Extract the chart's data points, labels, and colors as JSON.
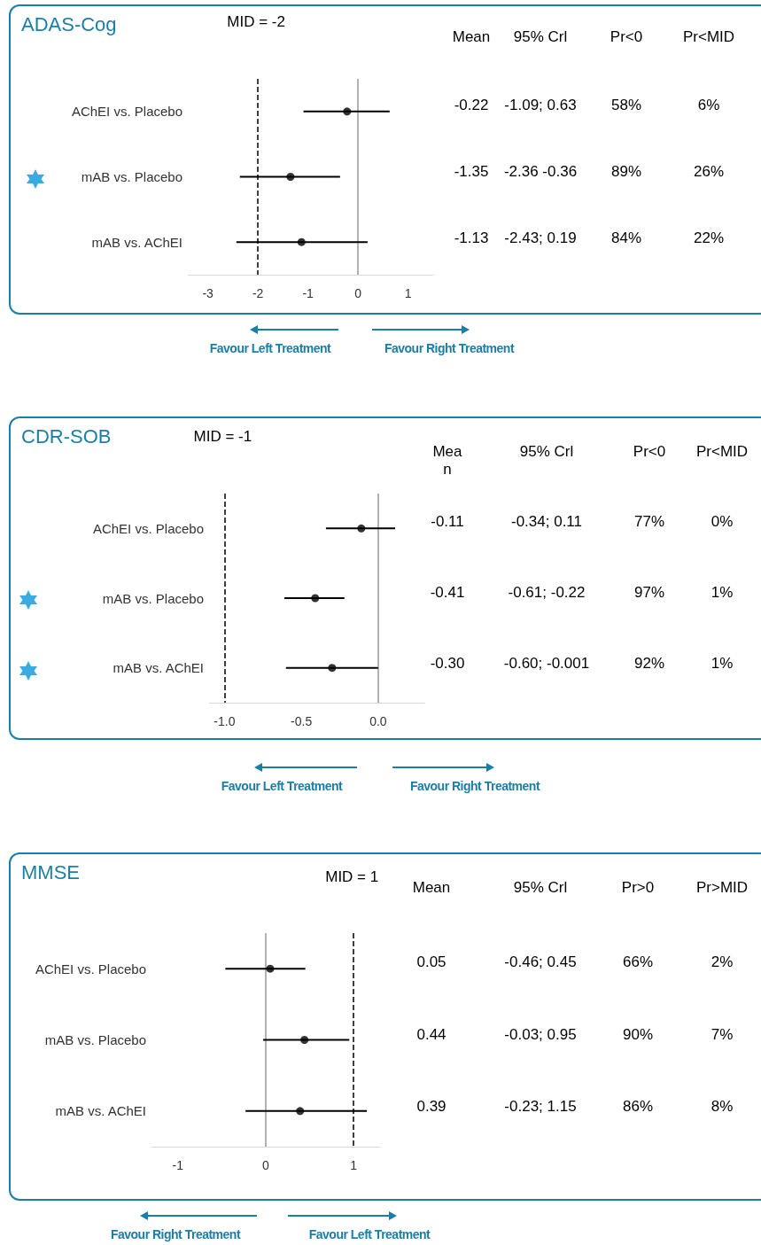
{
  "chart_data": [
    {
      "type": "scatter",
      "orientation": "horizontal",
      "title": "ADAS-Cog",
      "categories": [
        "AChEI vs. Placebo",
        "mAB vs. Placebo",
        "mAB vs. AChEI"
      ],
      "values": [
        -0.22,
        -1.35,
        -1.13
      ],
      "errors": [
        [
          -1.09,
          0.63
        ],
        [
          -2.36,
          -0.36
        ],
        [
          -2.43,
          0.19
        ]
      ],
      "value_labels": [
        "-0.22",
        "-1.35",
        "-1.13"
      ],
      "color": "#000000",
      "xlim": [
        -3.4,
        1.5
      ],
      "xticks": [
        -3,
        -2,
        -1,
        0,
        1
      ],
      "grid": false,
      "ref_lines": [
        {
          "axis": "x",
          "value": -2,
          "label": "MID = -2",
          "line_style": "dashed",
          "color": "#000000"
        },
        {
          "axis": "x",
          "value": 0,
          "label": null,
          "color": "#999999"
        }
      ],
      "annotations": [
        "Mean",
        "95% Crl",
        "Pr<0",
        "Pr<MID",
        "-1.09; 0.63",
        "58%",
        "6%",
        "-2.36 -0.36",
        "89%",
        "26%",
        "-2.43; 0.19",
        "84%",
        "22%",
        "Favour  Left Treatment",
        "Favour Right Treatment"
      ]
    },
    {
      "type": "scatter",
      "orientation": "horizontal",
      "title": "CDR-SOB",
      "categories": [
        "AChEI vs. Placebo",
        "mAB vs. Placebo",
        "mAB vs. AChEI"
      ],
      "values": [
        -0.11,
        -0.41,
        -0.3
      ],
      "errors": [
        [
          -0.34,
          0.11
        ],
        [
          -0.61,
          -0.22
        ],
        [
          -0.6,
          -0.001
        ]
      ],
      "value_labels": [
        "-0.11",
        "-0.41",
        "-0.30"
      ],
      "color": "#000000",
      "xlim": [
        -1.1,
        0.3
      ],
      "xticks": [
        {
          "value": -1,
          "label": "-1.0"
        },
        {
          "value": -0.5,
          "label": "-0.5"
        },
        {
          "value": 0,
          "label": "0.0"
        }
      ],
      "grid": false,
      "ref_lines": [
        {
          "axis": "x",
          "value": -1,
          "label": "MID = -1",
          "line_style": "dashed",
          "color": "#000000"
        },
        {
          "axis": "x",
          "value": 0,
          "label": null,
          "color": "#999999"
        }
      ],
      "annotations": [
        "Mean",
        "95% Crl",
        "Pr<0",
        "Pr<MID",
        "-0.34; 0.11",
        "77%",
        "0%",
        "-0.61; -0.22",
        "97%",
        "1%",
        "-0.60; -0.001",
        "92%",
        "1%",
        "Favour Left Treatment",
        "Favour Right Treatment"
      ]
    },
    {
      "type": "scatter",
      "orientation": "horizontal",
      "title": "MMSE",
      "categories": [
        "AChEI vs. Placebo",
        "mAB vs. Placebo",
        "mAB vs. AChEI"
      ],
      "values": [
        0.05,
        0.44,
        0.39
      ],
      "errors": [
        [
          -0.46,
          0.45
        ],
        [
          -0.03,
          0.95
        ],
        [
          -0.23,
          1.15
        ]
      ],
      "value_labels": [
        "0.05",
        "0.44",
        "0.39"
      ],
      "color": "#000000",
      "xlim": [
        -1.3,
        1.3
      ],
      "xticks": [
        -1,
        0,
        1
      ],
      "grid": false,
      "ref_lines": [
        {
          "axis": "x",
          "value": 1,
          "label": "MID = 1",
          "line_style": "dashed",
          "color": "#000000"
        },
        {
          "axis": "x",
          "value": 0,
          "label": null,
          "color": "#999999"
        }
      ],
      "annotations": [
        "Mean",
        "95% Crl",
        "Pr>0",
        "Pr>MID",
        "-0.46; 0.45",
        "66%",
        "2%",
        "-0.03; 0.95",
        "90%",
        "7%",
        "-0.23; 1.15",
        "86%",
        "8%",
        "Favour Right Treatment",
        "Favour Left Treatment"
      ]
    }
  ]
}
